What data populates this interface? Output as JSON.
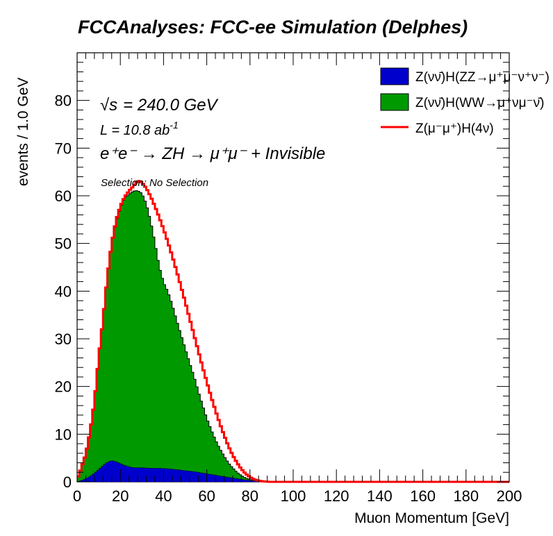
{
  "title": "FCCAnalyses: FCC-ee Simulation (Delphes)",
  "chart_data": {
    "type": "area",
    "xlabel": "Muon Momentum [GeV]",
    "ylabel": "events / 1.0 GeV",
    "xlim": [
      0,
      200
    ],
    "ylim": [
      0,
      90
    ],
    "x_ticks": [
      "0",
      "20",
      "40",
      "60",
      "80",
      "100",
      "120",
      "140",
      "160",
      "180",
      "200"
    ],
    "y_ticks": [
      "0",
      "10",
      "20",
      "30",
      "40",
      "50",
      "60",
      "70",
      "80"
    ],
    "bin_width": 1.0,
    "stacked_series": [
      {
        "name": "Z(νν̄)H(ZZ→μ⁺μ⁻ν⁺ν⁻)",
        "color": "#0000cc",
        "points": [
          [
            0,
            0.1
          ],
          [
            2,
            0.3
          ],
          [
            4,
            0.7
          ],
          [
            6,
            1.2
          ],
          [
            8,
            1.9
          ],
          [
            10,
            2.7
          ],
          [
            12,
            3.5
          ],
          [
            14,
            4.2
          ],
          [
            16,
            4.5
          ],
          [
            18,
            4.3
          ],
          [
            20,
            3.9
          ],
          [
            22,
            3.5
          ],
          [
            24,
            3.2
          ],
          [
            26,
            3.0
          ],
          [
            28,
            3.0
          ],
          [
            30,
            3.0
          ],
          [
            34,
            2.9
          ],
          [
            38,
            2.9
          ],
          [
            42,
            2.8
          ],
          [
            46,
            2.6
          ],
          [
            50,
            2.4
          ],
          [
            54,
            2.2
          ],
          [
            58,
            1.9
          ],
          [
            62,
            1.6
          ],
          [
            66,
            1.3
          ],
          [
            70,
            1.0
          ],
          [
            74,
            0.7
          ],
          [
            78,
            0.45
          ],
          [
            82,
            0.25
          ],
          [
            86,
            0.1
          ],
          [
            90,
            0.02
          ],
          [
            200,
            0
          ]
        ]
      },
      {
        "name": "Z(νν̄)H(WW→μ⁺νμ⁻ν̄)",
        "color": "#009900",
        "points": [
          [
            0,
            0.4
          ],
          [
            2,
            2.7
          ],
          [
            4,
            5.1
          ],
          [
            6,
            9.3
          ],
          [
            8,
            14.8
          ],
          [
            10,
            23.3
          ],
          [
            12,
            30.5
          ],
          [
            14,
            38.8
          ],
          [
            16,
            45.5
          ],
          [
            18,
            50.2
          ],
          [
            20,
            53.6
          ],
          [
            22,
            56.1
          ],
          [
            24,
            57.1
          ],
          [
            26,
            58.0
          ],
          [
            28,
            58.1
          ],
          [
            30,
            57.5
          ],
          [
            32,
            55.4
          ],
          [
            34,
            51.9
          ],
          [
            36,
            47.3
          ],
          [
            38,
            42.3
          ],
          [
            40,
            39.0
          ],
          [
            42,
            37.1
          ],
          [
            44,
            34.5
          ],
          [
            46,
            31.4
          ],
          [
            48,
            28.5
          ],
          [
            50,
            25.6
          ],
          [
            52,
            22.8
          ],
          [
            54,
            20.1
          ],
          [
            56,
            17.1
          ],
          [
            58,
            14.3
          ],
          [
            60,
            11.6
          ],
          [
            62,
            9.4
          ],
          [
            64,
            7.4
          ],
          [
            66,
            5.7
          ],
          [
            68,
            4.3
          ],
          [
            70,
            3.0
          ],
          [
            72,
            2.1
          ],
          [
            74,
            1.3
          ],
          [
            76,
            0.75
          ],
          [
            78,
            0.35
          ],
          [
            80,
            0.15
          ],
          [
            84,
            0.05
          ],
          [
            88,
            0
          ],
          [
            200,
            0
          ]
        ]
      }
    ],
    "line_series": [
      {
        "name": "Z(μ⁻μ⁺)H(4ν)",
        "color": "#ff0000",
        "points": [
          [
            0,
            0.5
          ],
          [
            2,
            3.0
          ],
          [
            4,
            5.8
          ],
          [
            6,
            10.5
          ],
          [
            8,
            16.7
          ],
          [
            10,
            26.0
          ],
          [
            12,
            34.0
          ],
          [
            14,
            43.0
          ],
          [
            16,
            50.0
          ],
          [
            18,
            54.8
          ],
          [
            20,
            57.8
          ],
          [
            22,
            59.8
          ],
          [
            24,
            61.0
          ],
          [
            26,
            62.0
          ],
          [
            28,
            63.2
          ],
          [
            30,
            62.8
          ],
          [
            32,
            61.6
          ],
          [
            34,
            59.9
          ],
          [
            36,
            57.8
          ],
          [
            38,
            55.5
          ],
          [
            40,
            53.0
          ],
          [
            42,
            50.3
          ],
          [
            44,
            47.4
          ],
          [
            46,
            44.3
          ],
          [
            48,
            41.1
          ],
          [
            50,
            37.8
          ],
          [
            52,
            34.4
          ],
          [
            54,
            31.0
          ],
          [
            56,
            27.6
          ],
          [
            58,
            24.2
          ],
          [
            60,
            21.0
          ],
          [
            62,
            17.9
          ],
          [
            64,
            15.0
          ],
          [
            66,
            12.3
          ],
          [
            68,
            9.8
          ],
          [
            70,
            7.5
          ],
          [
            72,
            5.6
          ],
          [
            74,
            4.0
          ],
          [
            76,
            2.7
          ],
          [
            78,
            1.7
          ],
          [
            80,
            1.0
          ],
          [
            82,
            0.5
          ],
          [
            84,
            0.25
          ],
          [
            86,
            0.1
          ],
          [
            88,
            0.03
          ],
          [
            90,
            0
          ],
          [
            200,
            0
          ]
        ]
      }
    ],
    "annotations": {
      "sqrt_s_symbol": "√s",
      "sqrt_s_value": "= 240.0 GeV",
      "lumi_label": "L = 10.8 ab",
      "lumi_exp": "-1",
      "process_label": "e⁺e⁻ → ZH → μ⁺μ⁻ + Invisible",
      "selection": "Selection: No Selection"
    },
    "legend_position": "top-right",
    "grid": false
  }
}
